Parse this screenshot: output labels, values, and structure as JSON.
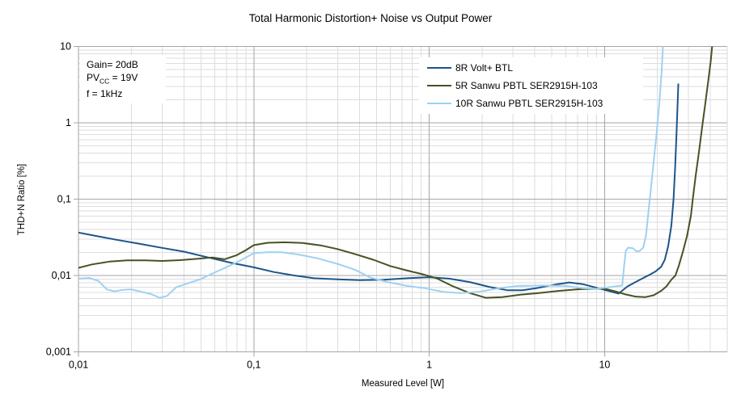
{
  "title": "Total Harmonic Distortion+ Noise vs Output Power",
  "annotation": {
    "line1": "Gain= 20dB",
    "line2_pre": "PV",
    "line2_sub": "CC",
    "line2_post": " = 19V",
    "line3": "f = 1kHz"
  },
  "chart_data": {
    "type": "line",
    "title": "Total Harmonic Distortion+ Noise vs Output Power",
    "xlabel": "Measured Level [W]",
    "ylabel": "THD+N Ratio [%]",
    "x_scale": "log",
    "y_scale": "log",
    "xlim": [
      0.01,
      50
    ],
    "ylim": [
      0.001,
      10
    ],
    "grid": "log major + minor",
    "legend_position": "top-right-inside",
    "x_ticks": [
      {
        "value": 0.01,
        "label": "0,01"
      },
      {
        "value": 0.1,
        "label": "0,1"
      },
      {
        "value": 1,
        "label": "1"
      },
      {
        "value": 10,
        "label": "10"
      }
    ],
    "y_ticks": [
      {
        "value": 10,
        "label": "10"
      },
      {
        "value": 1,
        "label": "1"
      },
      {
        "value": 0.1,
        "label": "0,1"
      },
      {
        "value": 0.01,
        "label": "0,01"
      },
      {
        "value": 0.001,
        "label": "0,001"
      }
    ],
    "series": [
      {
        "name": "8R Volt+ BTL",
        "color": "#1D5589",
        "points": [
          [
            0.01,
            0.0365
          ],
          [
            0.013,
            0.0325
          ],
          [
            0.017,
            0.029
          ],
          [
            0.022,
            0.0262
          ],
          [
            0.03,
            0.023
          ],
          [
            0.04,
            0.0205
          ],
          [
            0.055,
            0.0172
          ],
          [
            0.075,
            0.0146
          ],
          [
            0.1,
            0.0128
          ],
          [
            0.13,
            0.0111
          ],
          [
            0.17,
            0.01
          ],
          [
            0.22,
            0.0092
          ],
          [
            0.3,
            0.0089
          ],
          [
            0.4,
            0.0087
          ],
          [
            0.55,
            0.0088
          ],
          [
            0.75,
            0.0092
          ],
          [
            1.0,
            0.0095
          ],
          [
            1.3,
            0.0091
          ],
          [
            1.7,
            0.0082
          ],
          [
            2.2,
            0.0071
          ],
          [
            2.8,
            0.0064
          ],
          [
            3.4,
            0.0064
          ],
          [
            4.2,
            0.0069
          ],
          [
            5.2,
            0.0076
          ],
          [
            6.3,
            0.0081
          ],
          [
            7.5,
            0.0077
          ],
          [
            9,
            0.0069
          ],
          [
            10.5,
            0.0063
          ],
          [
            12,
            0.0058
          ],
          [
            13.5,
            0.0072
          ],
          [
            15,
            0.0082
          ],
          [
            16.5,
            0.0092
          ],
          [
            18,
            0.0102
          ],
          [
            19.5,
            0.0113
          ],
          [
            21,
            0.013
          ],
          [
            22,
            0.016
          ],
          [
            23,
            0.024
          ],
          [
            24,
            0.045
          ],
          [
            24.7,
            0.1
          ],
          [
            25.2,
            0.25
          ],
          [
            25.6,
            0.6
          ],
          [
            26,
            1.5
          ],
          [
            26.3,
            3.2
          ]
        ]
      },
      {
        "name": "5R Sanwu PBTL SER2915H-103",
        "color": "#475223",
        "points": [
          [
            0.01,
            0.0126
          ],
          [
            0.012,
            0.014
          ],
          [
            0.015,
            0.0152
          ],
          [
            0.019,
            0.0158
          ],
          [
            0.024,
            0.0158
          ],
          [
            0.03,
            0.0155
          ],
          [
            0.038,
            0.0159
          ],
          [
            0.048,
            0.0166
          ],
          [
            0.058,
            0.0172
          ],
          [
            0.068,
            0.0163
          ],
          [
            0.08,
            0.0185
          ],
          [
            0.09,
            0.0215
          ],
          [
            0.1,
            0.025
          ],
          [
            0.12,
            0.0268
          ],
          [
            0.15,
            0.0272
          ],
          [
            0.19,
            0.0266
          ],
          [
            0.24,
            0.0248
          ],
          [
            0.3,
            0.0222
          ],
          [
            0.38,
            0.019
          ],
          [
            0.48,
            0.0161
          ],
          [
            0.6,
            0.0133
          ],
          [
            0.75,
            0.0116
          ],
          [
            0.9,
            0.0105
          ],
          [
            1.1,
            0.0092
          ],
          [
            1.35,
            0.0073
          ],
          [
            1.7,
            0.0059
          ],
          [
            2.1,
            0.0051
          ],
          [
            2.6,
            0.0052
          ],
          [
            3.3,
            0.0056
          ],
          [
            4.2,
            0.0059
          ],
          [
            5.5,
            0.0063
          ],
          [
            7,
            0.0066
          ],
          [
            8.5,
            0.0067
          ],
          [
            10,
            0.0067
          ],
          [
            11.5,
            0.0062
          ],
          [
            13,
            0.0057
          ],
          [
            15,
            0.0053
          ],
          [
            17,
            0.0052
          ],
          [
            19,
            0.0055
          ],
          [
            21,
            0.0063
          ],
          [
            22.5,
            0.0072
          ],
          [
            24,
            0.0088
          ],
          [
            25.3,
            0.01
          ],
          [
            26.5,
            0.0135
          ],
          [
            28,
            0.021
          ],
          [
            29.5,
            0.033
          ],
          [
            31,
            0.06
          ],
          [
            31.8,
            0.1
          ],
          [
            33,
            0.2
          ],
          [
            34.5,
            0.42
          ],
          [
            36,
            0.9
          ],
          [
            37.5,
            1.8
          ],
          [
            39,
            3.6
          ],
          [
            40.2,
            6.3
          ],
          [
            41,
            10
          ]
        ]
      },
      {
        "name": "10R Sanwu PBTL SER2915H-103",
        "color": "#9FD1F1",
        "points": [
          [
            0.01,
            0.0091
          ],
          [
            0.0115,
            0.0093
          ],
          [
            0.013,
            0.0085
          ],
          [
            0.0145,
            0.0066
          ],
          [
            0.016,
            0.0062
          ],
          [
            0.018,
            0.0065
          ],
          [
            0.02,
            0.0066
          ],
          [
            0.023,
            0.0061
          ],
          [
            0.026,
            0.0057
          ],
          [
            0.029,
            0.0051
          ],
          [
            0.032,
            0.0054
          ],
          [
            0.036,
            0.007
          ],
          [
            0.042,
            0.0079
          ],
          [
            0.05,
            0.009
          ],
          [
            0.058,
            0.0106
          ],
          [
            0.068,
            0.0125
          ],
          [
            0.082,
            0.0153
          ],
          [
            0.1,
            0.0196
          ],
          [
            0.12,
            0.0202
          ],
          [
            0.145,
            0.0201
          ],
          [
            0.18,
            0.0188
          ],
          [
            0.23,
            0.0168
          ],
          [
            0.3,
            0.0142
          ],
          [
            0.38,
            0.0118
          ],
          [
            0.46,
            0.0094
          ],
          [
            0.58,
            0.0082
          ],
          [
            0.75,
            0.0073
          ],
          [
            0.95,
            0.0068
          ],
          [
            1.2,
            0.0061
          ],
          [
            1.5,
            0.0059
          ],
          [
            1.9,
            0.0061
          ],
          [
            2.5,
            0.0068
          ],
          [
            3.2,
            0.0073
          ],
          [
            4.5,
            0.0074
          ],
          [
            6,
            0.0073
          ],
          [
            7.5,
            0.0068
          ],
          [
            9,
            0.0067
          ],
          [
            10.5,
            0.007
          ],
          [
            12,
            0.0073
          ],
          [
            12.6,
            0.0074
          ],
          [
            12.9,
            0.013
          ],
          [
            13.2,
            0.021
          ],
          [
            13.6,
            0.0232
          ],
          [
            14.5,
            0.0228
          ],
          [
            15.2,
            0.0207
          ],
          [
            15.8,
            0.021
          ],
          [
            16.6,
            0.0232
          ],
          [
            17.2,
            0.033
          ],
          [
            17.8,
            0.07
          ],
          [
            18.3,
            0.13
          ],
          [
            19,
            0.3
          ],
          [
            19.8,
            0.75
          ],
          [
            20.5,
            1.8
          ],
          [
            21.1,
            4.5
          ],
          [
            21.5,
            10
          ]
        ]
      }
    ]
  }
}
